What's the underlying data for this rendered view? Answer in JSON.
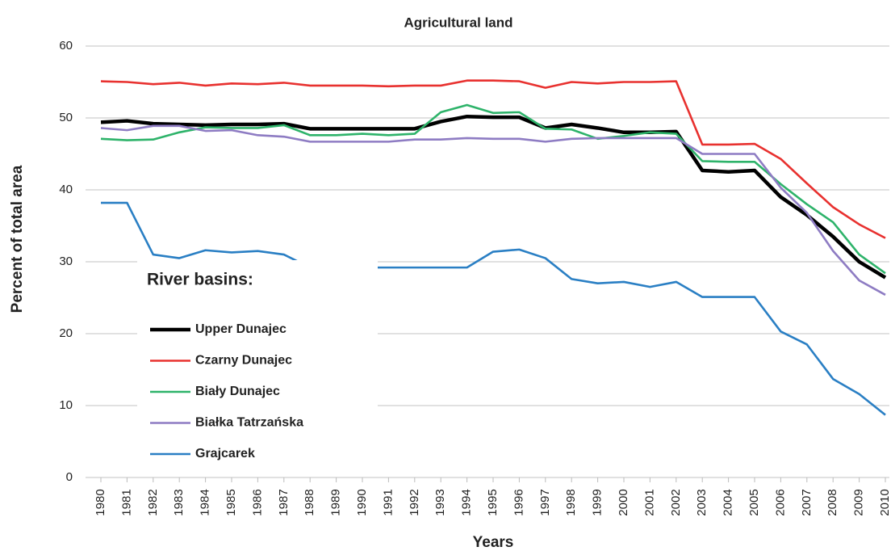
{
  "chart_data": {
    "type": "line",
    "title": "Agricultural land",
    "x_label": "Years",
    "y_label": "Percent of total area",
    "legend_title": "River basins:",
    "x": [
      1980,
      1981,
      1982,
      1983,
      1984,
      1985,
      1986,
      1987,
      1988,
      1989,
      1990,
      1991,
      1992,
      1993,
      1994,
      1995,
      1996,
      1997,
      1998,
      1999,
      2000,
      2001,
      2002,
      2003,
      2004,
      2005,
      2006,
      2007,
      2008,
      2009,
      2010
    ],
    "xlim": [
      1980,
      2010
    ],
    "ylim": [
      0,
      60
    ],
    "yticks": [
      0,
      10,
      20,
      30,
      40,
      50,
      60
    ],
    "grid": true,
    "legend": "left",
    "series": [
      {
        "name": "Upper Dunajec",
        "color": "#000000",
        "values": [
          49.4,
          49.6,
          49.2,
          49.1,
          49.0,
          49.1,
          49.1,
          49.2,
          48.5,
          48.5,
          48.5,
          48.5,
          48.5,
          49.5,
          50.2,
          50.1,
          50.1,
          48.6,
          49.1,
          48.6,
          48.0,
          48.0,
          48.1,
          42.7,
          42.5,
          42.7,
          39.0,
          36.5,
          33.5,
          30.0,
          27.8
        ]
      },
      {
        "name": "Czarny Dunajec",
        "color": "#e8312f",
        "values": [
          55.1,
          55.0,
          54.7,
          54.9,
          54.5,
          54.8,
          54.7,
          54.9,
          54.5,
          54.5,
          54.5,
          54.4,
          54.5,
          54.5,
          55.2,
          55.2,
          55.1,
          54.2,
          55.0,
          54.8,
          55.0,
          55.0,
          55.1,
          46.3,
          46.3,
          46.4,
          44.3,
          40.9,
          37.6,
          35.2,
          33.3
        ]
      },
      {
        "name": "Biały Dunajec",
        "color": "#2eb36a",
        "values": [
          47.1,
          46.9,
          47.0,
          48.0,
          48.7,
          48.6,
          48.6,
          49.0,
          47.6,
          47.6,
          47.8,
          47.6,
          47.8,
          50.8,
          51.8,
          50.7,
          50.8,
          48.5,
          48.4,
          47.1,
          47.5,
          48.0,
          47.8,
          44.0,
          43.9,
          43.9,
          40.8,
          38.0,
          35.5,
          31.0,
          28.4
        ]
      },
      {
        "name": "Białka Tatrzańska",
        "color": "#8e7cc3",
        "values": [
          48.6,
          48.3,
          48.9,
          48.9,
          48.2,
          48.3,
          47.6,
          47.4,
          46.7,
          46.7,
          46.7,
          46.7,
          47.0,
          47.0,
          47.2,
          47.1,
          47.1,
          46.7,
          47.1,
          47.2,
          47.2,
          47.2,
          47.2,
          45.0,
          45.0,
          45.0,
          40.3,
          36.8,
          31.5,
          27.4,
          25.4
        ]
      },
      {
        "name": "Grajcarek",
        "color": "#2a7fc4",
        "values": [
          38.2,
          38.2,
          31.0,
          30.5,
          31.6,
          31.3,
          31.5,
          31.0,
          29.2,
          29.2,
          29.2,
          29.2,
          29.2,
          29.2,
          29.2,
          31.4,
          31.7,
          30.5,
          27.6,
          27.0,
          27.2,
          26.5,
          27.2,
          25.1,
          25.1,
          25.1,
          20.3,
          18.5,
          13.7,
          11.6,
          8.7
        ]
      }
    ]
  }
}
